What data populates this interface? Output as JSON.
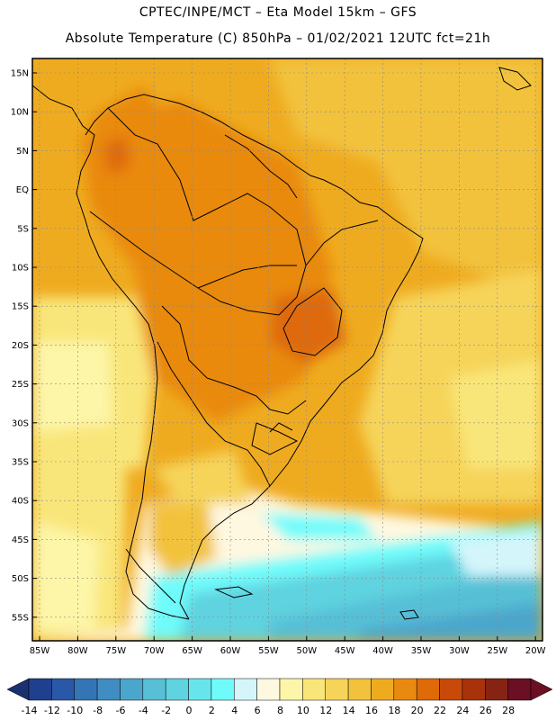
{
  "header": {
    "line1": "CPTEC/INPE/MCT –  Eta Model 15km – GFS",
    "line2": "Absolute Temperature (C) 850hPa – 01/02/2021 12UTC fct=21h"
  },
  "map": {
    "lat_labels": [
      "15N",
      "10N",
      "5N",
      "EQ",
      "5S",
      "10S",
      "15S",
      "20S",
      "25S",
      "30S",
      "35S",
      "40S",
      "45S",
      "50S",
      "55S"
    ],
    "lon_labels": [
      "85W",
      "80W",
      "75W",
      "70W",
      "65W",
      "60W",
      "55W",
      "50W",
      "45W",
      "40W",
      "35W",
      "30W",
      "25W",
      "20W"
    ]
  },
  "colorbar": {
    "values": [
      "-14",
      "-12",
      "-10",
      "-8",
      "-6",
      "-4",
      "-2",
      "0",
      "2",
      "4",
      "6",
      "8",
      "10",
      "12",
      "14",
      "16",
      "18",
      "20",
      "22",
      "24",
      "26",
      "28"
    ],
    "colors": [
      "#1f3f8f",
      "#2a58a8",
      "#3475b6",
      "#3f8dc2",
      "#4ba6cc",
      "#57bfd6",
      "#5fd3e0",
      "#66e6ec",
      "#70fbfb",
      "#d4f6fb",
      "#fff8e0",
      "#fdf6a8",
      "#f9e67a",
      "#f6d45a",
      "#f2c23c",
      "#efab20",
      "#e98a10",
      "#de6a08",
      "#c84a08",
      "#a8320a",
      "#862414",
      "#6a0f24"
    ],
    "left_arrow_color": "#1a3070",
    "right_arrow_color": "#6a0f24"
  }
}
